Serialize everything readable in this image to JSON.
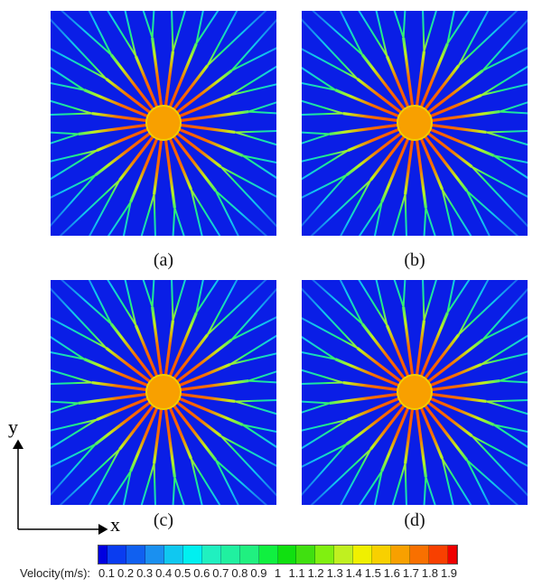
{
  "panels": [
    {
      "label": "(a)"
    },
    {
      "label": "(b)"
    },
    {
      "label": "(c)"
    },
    {
      "label": "(d)"
    }
  ],
  "axes": {
    "x": "x",
    "y": "y"
  },
  "colorbar": {
    "title": "Velocity(m/s):",
    "ticks": [
      "0.1",
      "0.2",
      "0.3",
      "0.4",
      "0.5",
      "0.6",
      "0.7",
      "0.8",
      "0.9",
      "1",
      "1.1",
      "1.2",
      "1.3",
      "1.4",
      "1.5",
      "1.6",
      "1.7",
      "1.8",
      "1.9"
    ],
    "colors": [
      "#0000e0",
      "#0a3cf0",
      "#1060f0",
      "#1a90f0",
      "#10c8f0",
      "#00f0f0",
      "#20f0c0",
      "#20f0a0",
      "#20f080",
      "#10f040",
      "#10e010",
      "#40e010",
      "#80f010",
      "#c0f020",
      "#f0f000",
      "#f8d000",
      "#f8a000",
      "#f87000",
      "#f84000",
      "#f00000"
    ]
  },
  "background_color": "#0a1ee6"
}
